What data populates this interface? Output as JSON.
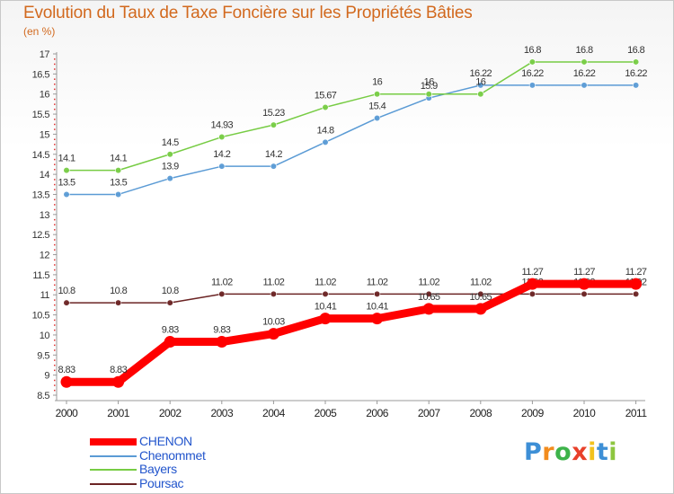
{
  "title": "Evolution du Taux de Taxe Foncière sur les Propriétés Bâties",
  "unit_label": "(en %)",
  "logo": {
    "text": "Proxiti",
    "letters": [
      {
        "ch": "P",
        "color": "#3d8fd6"
      },
      {
        "ch": "r",
        "color": "#f28c1e"
      },
      {
        "ch": "o",
        "color": "#3db34a"
      },
      {
        "ch": "x",
        "color": "#e8402a"
      },
      {
        "ch": "i",
        "color": "#f2c21e"
      },
      {
        "ch": "t",
        "color": "#3d8fd6"
      },
      {
        "ch": "i",
        "color": "#8dc63f"
      }
    ]
  },
  "chart_data": {
    "type": "line",
    "title": "Evolution du Taux de Taxe Foncière sur les Propriétés Bâties",
    "ylabel": "(en %)",
    "x": [
      "2000",
      "2001",
      "2002",
      "2003",
      "2004",
      "2005",
      "2006",
      "2007",
      "2008",
      "2009",
      "2010",
      "2011"
    ],
    "ylim": [
      8.5,
      17
    ],
    "yticks": [
      "8.5",
      "9",
      "9.5",
      "10",
      "10.5",
      "11",
      "11.5",
      "12",
      "12.5",
      "13",
      "13.5",
      "14",
      "14.5",
      "15",
      "15.5",
      "16",
      "16.5",
      "17"
    ],
    "grid": false,
    "legend_position": "bottom-left",
    "series": [
      {
        "name": "CHENON",
        "color": "#ff0000",
        "emphasis": true,
        "values": [
          8.83,
          8.83,
          9.83,
          9.83,
          10.03,
          10.41,
          10.41,
          10.65,
          10.65,
          11.27,
          11.27,
          11.27
        ],
        "labels": [
          "8.83",
          "8.83",
          "9.83",
          "9.83",
          "10.03",
          "10.41",
          "10.41",
          "10.65",
          "10.65",
          "11.27",
          "11.27",
          "11.27"
        ]
      },
      {
        "name": "Chenommet",
        "color": "#5b9bd5",
        "values": [
          13.5,
          13.5,
          13.9,
          14.2,
          14.2,
          14.8,
          15.4,
          15.9,
          16.22,
          16.22,
          16.22,
          16.22
        ],
        "labels": [
          "13.5",
          "13.5",
          "13.9",
          "14.2",
          "14.2",
          "14.8",
          "15.4",
          "15.9",
          "16.22",
          "16.22",
          "16.22",
          "16.22"
        ]
      },
      {
        "name": "Bayers",
        "color": "#77cc44",
        "values": [
          14.1,
          14.1,
          14.5,
          14.93,
          15.23,
          15.67,
          16,
          16,
          16,
          16.8,
          16.8,
          16.8
        ],
        "labels": [
          "14.1",
          "14.1",
          "14.5",
          "14.93",
          "15.23",
          "15.67",
          "16",
          "16",
          "16",
          "16.8",
          "16.8",
          "16.8"
        ]
      },
      {
        "name": "Poursac",
        "color": "#6b2424",
        "values": [
          10.8,
          10.8,
          10.8,
          11.02,
          11.02,
          11.02,
          11.02,
          11.02,
          11.02,
          11.02,
          11.02,
          11.02
        ],
        "labels": [
          "10.8",
          "10.8",
          "10.8",
          "11.02",
          "11.02",
          "11.02",
          "11.02",
          "11.02",
          "11.02",
          "11.02",
          "11.02",
          "11.02"
        ]
      }
    ]
  }
}
